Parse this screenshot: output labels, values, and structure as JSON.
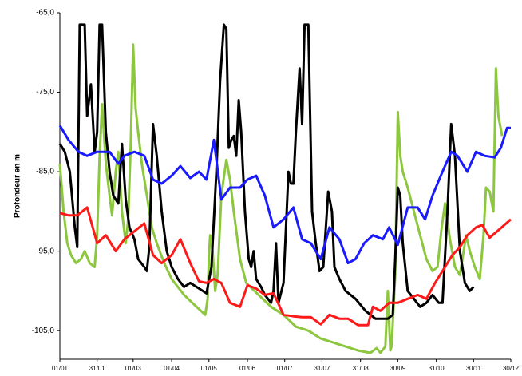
{
  "chart_data": {
    "type": "line",
    "y_label": "Profondeur en m",
    "xlim": [
      0,
      363
    ],
    "xticks": [
      {
        "value": 0,
        "label": "01/01"
      },
      {
        "value": 30,
        "label": "31/01"
      },
      {
        "value": 59,
        "label": "01/03"
      },
      {
        "value": 90,
        "label": "01/04"
      },
      {
        "value": 120,
        "label": "01/05"
      },
      {
        "value": 151,
        "label": "01/06"
      },
      {
        "value": 181,
        "label": "01/07"
      },
      {
        "value": 211,
        "label": "31/07"
      },
      {
        "value": 242,
        "label": "31/08"
      },
      {
        "value": 272,
        "label": "30/09"
      },
      {
        "value": 303,
        "label": "31/10"
      },
      {
        "value": 333,
        "label": "30/11"
      },
      {
        "value": 363,
        "label": "30/12"
      }
    ],
    "ylim": [
      -108.6,
      -65
    ],
    "yticks": [
      {
        "value": -65,
        "label": "-65,0"
      },
      {
        "value": -75,
        "label": "-75,0"
      },
      {
        "value": -85,
        "label": "-85,0"
      },
      {
        "value": -95,
        "label": "-95,0"
      },
      {
        "value": -105,
        "label": "-105,0"
      }
    ],
    "series": [
      {
        "color": "#8dc63f",
        "x": [
          0,
          3,
          6,
          9,
          13,
          17,
          20,
          24,
          28,
          30,
          32,
          34,
          37,
          40,
          42,
          45,
          47,
          50,
          53,
          55,
          57,
          59,
          61,
          63,
          66,
          70,
          74,
          78,
          84,
          90,
          100,
          110,
          117,
          119,
          120,
          121,
          123,
          125,
          127,
          130,
          134,
          137,
          140,
          145,
          150,
          160,
          170,
          180,
          190,
          200,
          210,
          220,
          230,
          240,
          250,
          255,
          258,
          262,
          264,
          266,
          267,
          270,
          272,
          274,
          276,
          280,
          285,
          290,
          295,
          300,
          304,
          307,
          310,
          314,
          318,
          322,
          325,
          327,
          330,
          334,
          338,
          341,
          343,
          346,
          349,
          351,
          353,
          356
        ],
        "values": [
          -84,
          -90,
          -94,
          -95.5,
          -96.5,
          -96,
          -95,
          -96.5,
          -97,
          -93,
          -83,
          -76.5,
          -84,
          -88,
          -90.5,
          -85,
          -82.5,
          -90,
          -94,
          -91,
          -82,
          -69,
          -77,
          -80,
          -84,
          -88,
          -92,
          -94,
          -96.5,
          -98.5,
          -100.5,
          -102,
          -103,
          -101,
          -95.5,
          -93,
          -95,
          -100,
          -98,
          -88,
          -83.5,
          -86,
          -90,
          -96,
          -99,
          -100.5,
          -102,
          -103,
          -104.5,
          -105,
          -106,
          -106.5,
          -107,
          -107.5,
          -107.8,
          -107.2,
          -107.8,
          -107,
          -100,
          -107.5,
          -107,
          -98,
          -77.5,
          -83,
          -85,
          -87,
          -90,
          -93,
          -96,
          -97.5,
          -97,
          -92.5,
          -89,
          -93.5,
          -97,
          -98,
          -95,
          -93,
          -95,
          -97,
          -98.5,
          -93,
          -87,
          -87.5,
          -90,
          -72,
          -78,
          -80.5
        ]
      },
      {
        "color": "#000000",
        "x": [
          0,
          4,
          8,
          12,
          14,
          16,
          20,
          22,
          25,
          28,
          30,
          32,
          34,
          37,
          40,
          43,
          47,
          50,
          53,
          56,
          60,
          63,
          68,
          70,
          72,
          75,
          78,
          82,
          86,
          90,
          95,
          100,
          105,
          110,
          115,
          118,
          122,
          126,
          129,
          132,
          134,
          136,
          138,
          140,
          142,
          144,
          146,
          149,
          152,
          154,
          156,
          158,
          162,
          165,
          170,
          172,
          174,
          176,
          180,
          184,
          186,
          188,
          190,
          193,
          195,
          197,
          200,
          203,
          206,
          209,
          212,
          216,
          219,
          221,
          225,
          230,
          238,
          246,
          254,
          260,
          264,
          268,
          270,
          272,
          274,
          276,
          280,
          285,
          290,
          295,
          300,
          305,
          308,
          312,
          315,
          318,
          322,
          326,
          330,
          333
        ],
        "values": [
          -81.5,
          -82.5,
          -85,
          -92,
          -94.5,
          -66.5,
          -66.5,
          -78,
          -74,
          -82.5,
          -80,
          -66.5,
          -66.5,
          -80,
          -85,
          -88,
          -89,
          -81.5,
          -88.5,
          -92,
          -93.5,
          -96,
          -97,
          -97.5,
          -94.5,
          -79,
          -83,
          -90,
          -95,
          -97,
          -98.5,
          -99.5,
          -99,
          -99.5,
          -100,
          -100.3,
          -97,
          -85,
          -73.5,
          -66.5,
          -67,
          -82,
          -81,
          -80.5,
          -83,
          -76,
          -80,
          -90,
          -96,
          -97,
          -95,
          -98.5,
          -99.5,
          -100.5,
          -101.5,
          -100,
          -94,
          -101.5,
          -99,
          -85,
          -86.5,
          -86.5,
          -80,
          -72,
          -79,
          -66.5,
          -66.5,
          -90,
          -94,
          -97.5,
          -97,
          -87.5,
          -90,
          -97,
          -98.5,
          -100,
          -101,
          -102.5,
          -103.5,
          -103.5,
          -103.5,
          -103,
          -96,
          -87,
          -88,
          -94,
          -100,
          -101,
          -102,
          -101.5,
          -100.5,
          -101.5,
          -101.5,
          -90,
          -79,
          -83,
          -95,
          -99,
          -100,
          -99.5
        ]
      },
      {
        "color": "#1a1aff",
        "x": [
          0,
          7,
          15,
          22,
          30,
          40,
          47,
          52,
          60,
          68,
          75,
          82,
          90,
          97,
          105,
          112,
          118,
          124,
          130,
          137,
          145,
          151,
          158,
          165,
          172,
          180,
          188,
          195,
          202,
          210,
          217,
          225,
          232,
          238,
          245,
          252,
          260,
          265,
          272,
          280,
          288,
          294,
          300,
          308,
          315,
          320,
          328,
          335,
          342,
          350,
          355,
          360,
          363
        ],
        "values": [
          -79.2,
          -81,
          -82.5,
          -83,
          -82.5,
          -82.5,
          -84,
          -83,
          -82.5,
          -83,
          -86,
          -86.5,
          -85.5,
          -84.3,
          -85.8,
          -85,
          -86,
          -81,
          -88.5,
          -87,
          -87,
          -86,
          -85.5,
          -88,
          -92,
          -91,
          -89.5,
          -93.5,
          -94,
          -96,
          -92,
          -93.5,
          -96.5,
          -96,
          -94,
          -93,
          -93.5,
          -92,
          -94.2,
          -89.5,
          -89.5,
          -91,
          -88,
          -85,
          -82.5,
          -83,
          -85,
          -82.5,
          -83,
          -83.2,
          -82,
          -79.5,
          -79.5
        ]
      },
      {
        "color": "#ff1a1a",
        "x": [
          0,
          7,
          14,
          22,
          30,
          37,
          45,
          52,
          60,
          68,
          75,
          82,
          90,
          97,
          105,
          112,
          118,
          124,
          130,
          137,
          145,
          151,
          158,
          165,
          172,
          180,
          188,
          195,
          202,
          210,
          217,
          225,
          232,
          240,
          248,
          252,
          258,
          265,
          272,
          280,
          288,
          295,
          302,
          310,
          316,
          322,
          328,
          335,
          340,
          346,
          352,
          363
        ],
        "values": [
          -90.2,
          -90.5,
          -90.5,
          -89.5,
          -94,
          -93,
          -95,
          -93.5,
          -92.5,
          -91.5,
          -95.5,
          -96.5,
          -95.5,
          -93.5,
          -96.5,
          -98.8,
          -99,
          -98.5,
          -99,
          -101.5,
          -102,
          -99.3,
          -99.7,
          -100.5,
          -100.3,
          -103,
          -103.2,
          -103.3,
          -103.3,
          -104.2,
          -103,
          -103.5,
          -103.5,
          -104.3,
          -104.3,
          -102,
          -102.5,
          -101.5,
          -101.5,
          -101,
          -100.5,
          -101,
          -99,
          -97,
          -95.5,
          -94.5,
          -93,
          -92,
          -91.7,
          -93.3,
          -92.5,
          -91
        ]
      }
    ]
  }
}
